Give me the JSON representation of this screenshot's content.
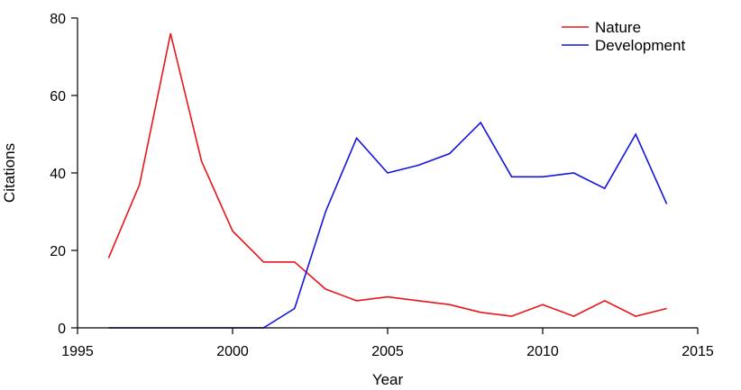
{
  "chart_data": {
    "type": "line",
    "xlabel": "Year",
    "ylabel": "Citations",
    "xlim": [
      1995,
      2015
    ],
    "ylim": [
      0,
      80
    ],
    "xticks": [
      1995,
      2000,
      2005,
      2010,
      2015
    ],
    "yticks": [
      0,
      20,
      40,
      60,
      80
    ],
    "x": [
      1996,
      1997,
      1998,
      1999,
      2000,
      2001,
      2002,
      2003,
      2004,
      2005,
      2006,
      2007,
      2008,
      2009,
      2010,
      2011,
      2012,
      2013,
      2014
    ],
    "series": [
      {
        "name": "Nature",
        "color": "#e8161b",
        "values": [
          18,
          37,
          76,
          43,
          25,
          17,
          17,
          10,
          7,
          8,
          7,
          6,
          4,
          3,
          6,
          3,
          7,
          3,
          5
        ]
      },
      {
        "name": "Development",
        "color": "#1414e0",
        "values": [
          0,
          0,
          0,
          0,
          0,
          0,
          5,
          30,
          49,
          40,
          42,
          45,
          53,
          39,
          39,
          40,
          36,
          50,
          32
        ]
      }
    ],
    "legend_position": "top-right",
    "grid": false
  }
}
